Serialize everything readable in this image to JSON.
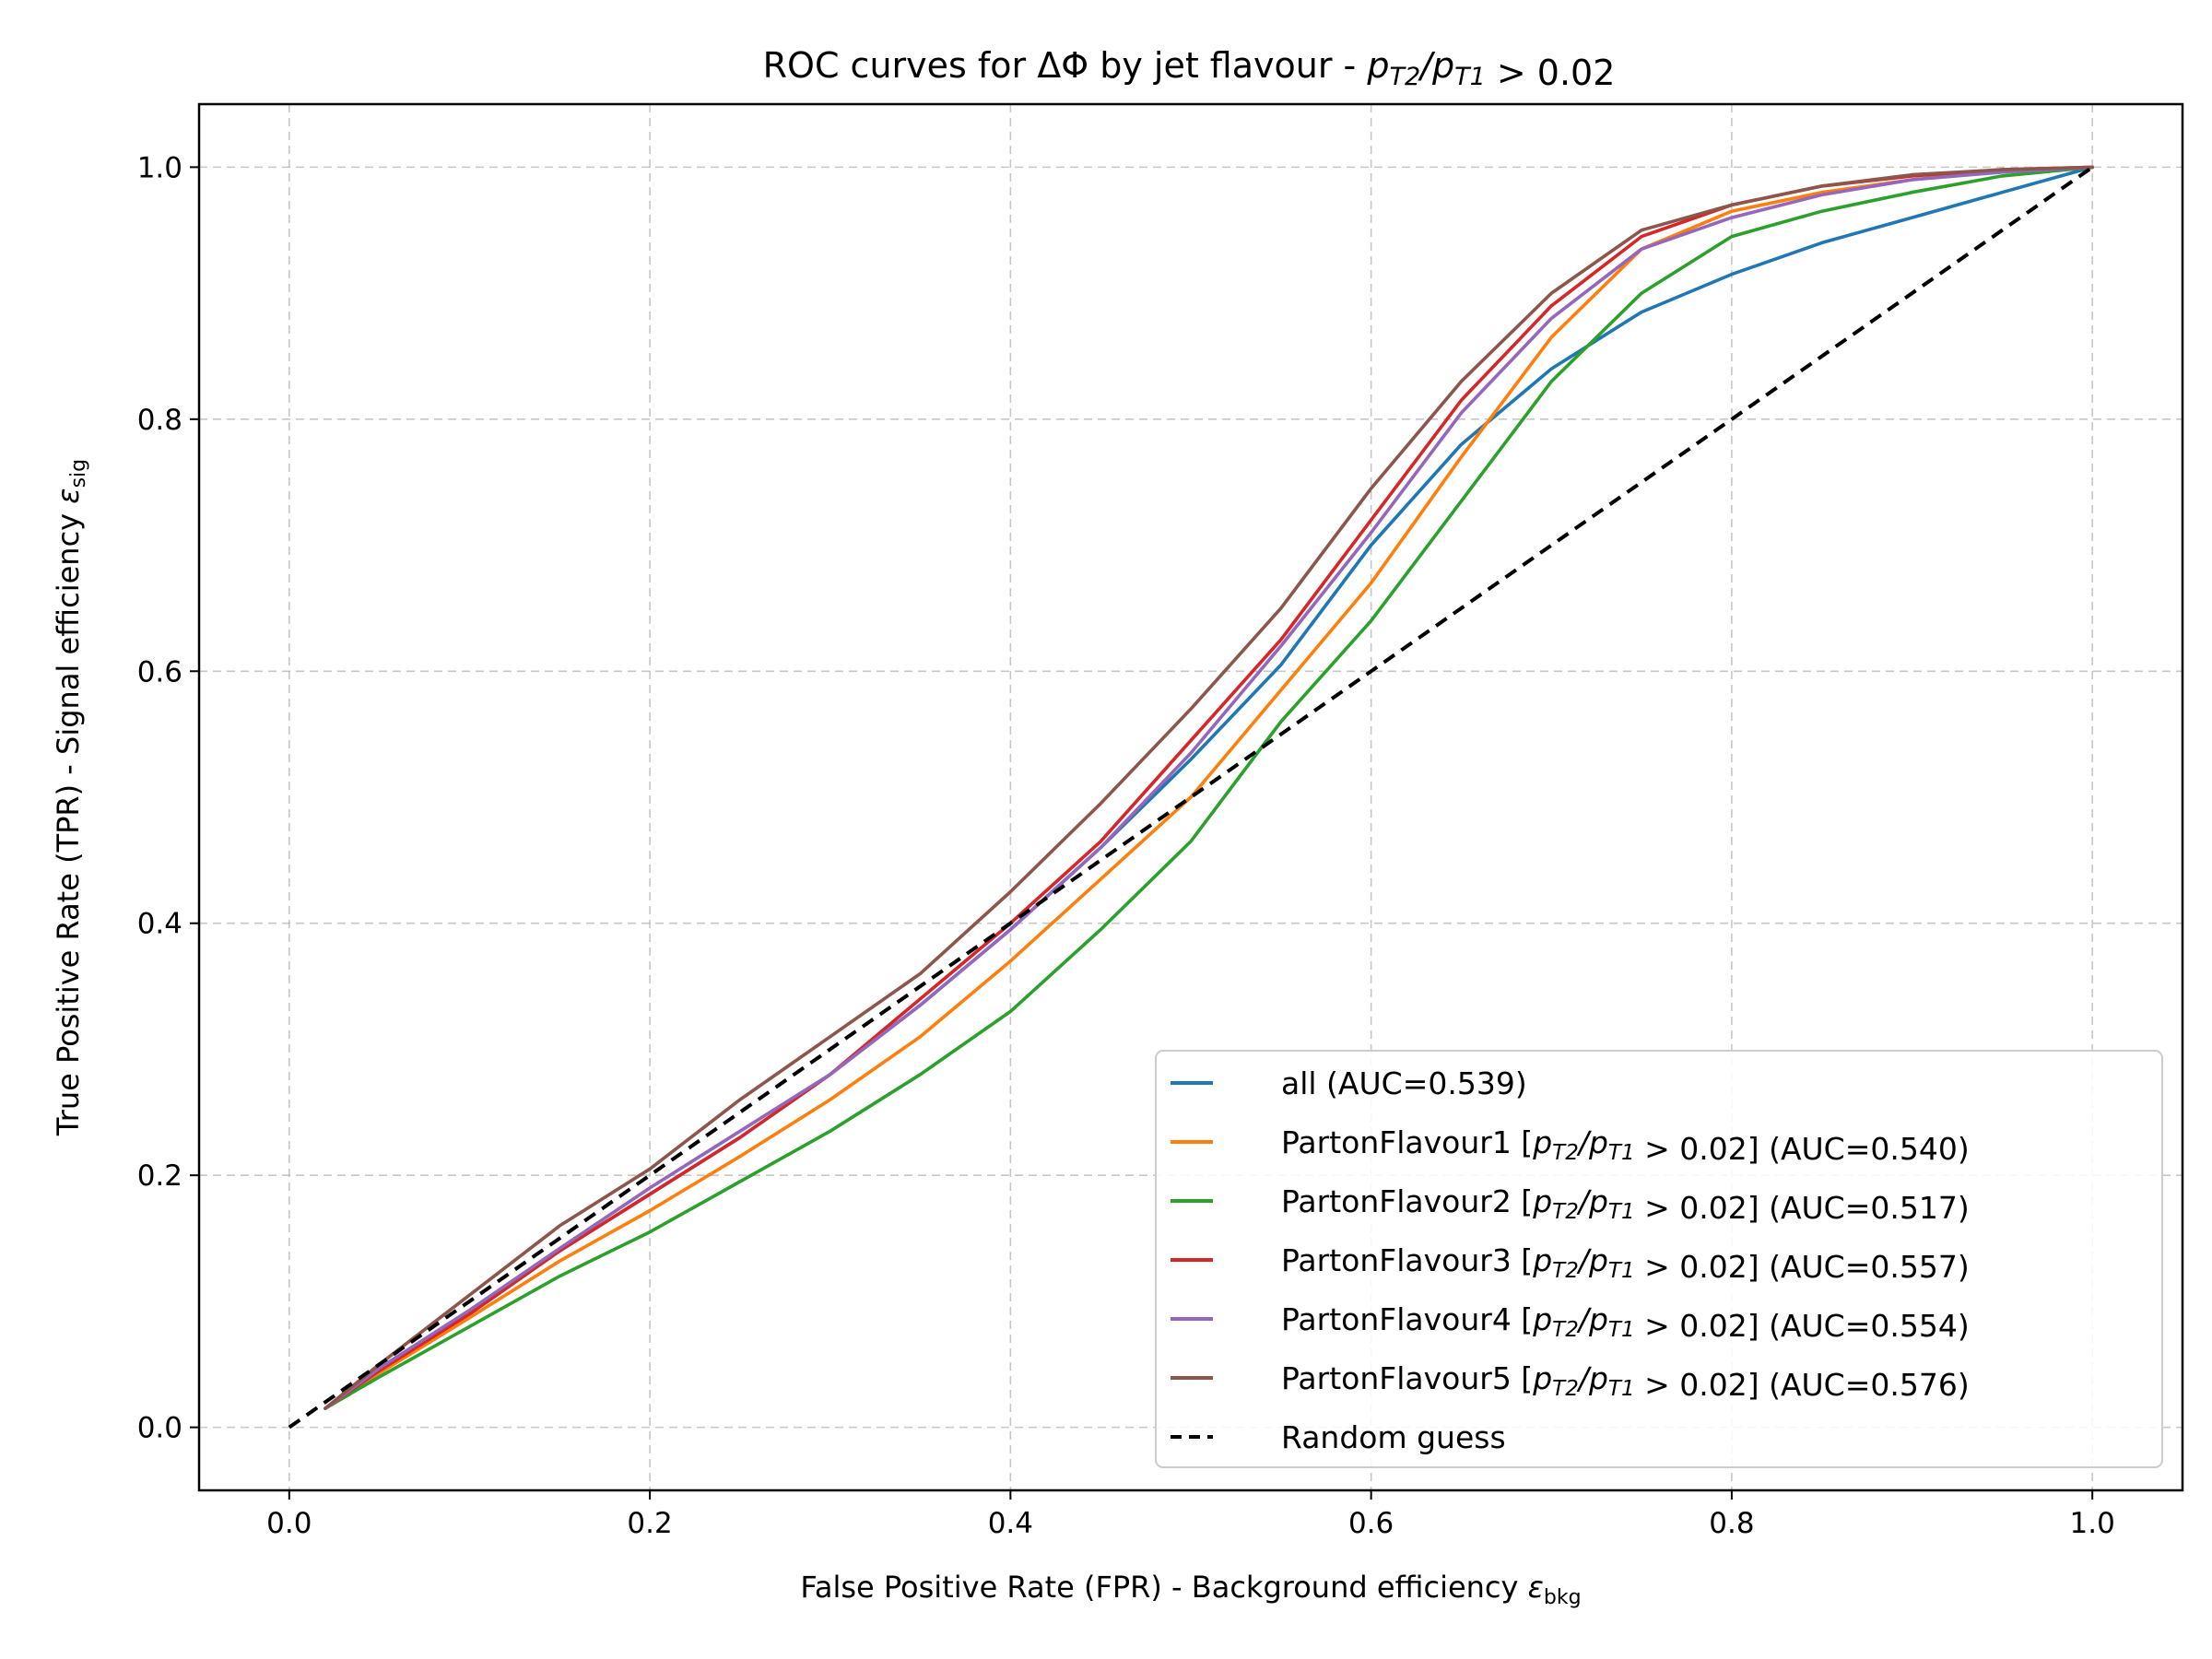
{
  "chart_data": {
    "type": "line",
    "title": "ROC curves for ΔΦ by jet flavour - pₜ₂/pₜ₁ > 0.02",
    "title_parts": {
      "prefix": "ROC curves for ΔΦ by jet flavour - ",
      "suffix": " > 0.02"
    },
    "xlabel": "False Positive Rate (FPR) - Background efficiency εbkg",
    "xlabel_parts": {
      "main": "False Positive Rate (FPR) - Background efficiency ",
      "symbol": "ε",
      "sub": "bkg"
    },
    "ylabel": "True Positive Rate (TPR) - Signal efficiency εsig",
    "ylabel_parts": {
      "main": "True Positive Rate (TPR) - Signal efficiency ",
      "symbol": "ε",
      "sub": "sig"
    },
    "xlim": [
      -0.05,
      1.05
    ],
    "ylim": [
      -0.05,
      1.05
    ],
    "xticks": [
      0.0,
      0.2,
      0.4,
      0.6,
      0.8,
      1.0
    ],
    "yticks": [
      0.0,
      0.2,
      0.4,
      0.6,
      0.8,
      1.0
    ],
    "xtick_labels": [
      "0.0",
      "0.2",
      "0.4",
      "0.6",
      "0.8",
      "1.0"
    ],
    "ytick_labels": [
      "0.0",
      "0.2",
      "0.4",
      "0.6",
      "0.8",
      "1.0"
    ],
    "grid": true,
    "legend_position": "lower-right",
    "series": [
      {
        "name": "all (AUC=0.539)",
        "label_prefix": "all (AUC=0.539)",
        "label_suffix": "",
        "has_cut": false,
        "color": "#1f77b4",
        "x": [
          0.02,
          0.05,
          0.1,
          0.15,
          0.2,
          0.25,
          0.3,
          0.35,
          0.4,
          0.45,
          0.5,
          0.55,
          0.6,
          0.65,
          0.7,
          0.75,
          0.8,
          0.85,
          0.9,
          0.95,
          1.0
        ],
        "y": [
          0.015,
          0.045,
          0.09,
          0.14,
          0.185,
          0.23,
          0.28,
          0.335,
          0.395,
          0.46,
          0.53,
          0.605,
          0.7,
          0.78,
          0.84,
          0.885,
          0.915,
          0.94,
          0.96,
          0.98,
          1.0
        ]
      },
      {
        "name": "PartonFlavour1 [pT2/pT1 > 0.02] (AUC=0.540)",
        "label_prefix": "PartonFlavour1 [",
        "label_suffix": " > 0.02] (AUC=0.540)",
        "has_cut": true,
        "color": "#ff7f0e",
        "x": [
          0.02,
          0.05,
          0.1,
          0.15,
          0.2,
          0.25,
          0.3,
          0.35,
          0.4,
          0.45,
          0.5,
          0.55,
          0.6,
          0.65,
          0.7,
          0.75,
          0.8,
          0.85,
          0.9,
          0.95,
          1.0
        ],
        "y": [
          0.015,
          0.043,
          0.087,
          0.132,
          0.172,
          0.215,
          0.26,
          0.31,
          0.37,
          0.435,
          0.5,
          0.585,
          0.67,
          0.77,
          0.865,
          0.935,
          0.965,
          0.98,
          0.99,
          0.997,
          1.0
        ]
      },
      {
        "name": "PartonFlavour2 [pT2/pT1 > 0.02] (AUC=0.517)",
        "label_prefix": "PartonFlavour2 [",
        "label_suffix": " > 0.02] (AUC=0.517)",
        "has_cut": true,
        "color": "#2ca02c",
        "x": [
          0.02,
          0.05,
          0.1,
          0.15,
          0.2,
          0.25,
          0.3,
          0.35,
          0.4,
          0.45,
          0.5,
          0.55,
          0.6,
          0.65,
          0.7,
          0.75,
          0.8,
          0.85,
          0.9,
          0.95,
          1.0
        ],
        "y": [
          0.015,
          0.04,
          0.08,
          0.12,
          0.155,
          0.195,
          0.235,
          0.28,
          0.33,
          0.395,
          0.465,
          0.56,
          0.64,
          0.735,
          0.83,
          0.9,
          0.945,
          0.965,
          0.98,
          0.993,
          1.0
        ]
      },
      {
        "name": "PartonFlavour3 [pT2/pT1 > 0.02] (AUC=0.557)",
        "label_prefix": "PartonFlavour3 [",
        "label_suffix": " > 0.02] (AUC=0.557)",
        "has_cut": true,
        "color": "#d62728",
        "x": [
          0.02,
          0.05,
          0.1,
          0.15,
          0.2,
          0.25,
          0.3,
          0.35,
          0.4,
          0.45,
          0.5,
          0.55,
          0.6,
          0.65,
          0.7,
          0.75,
          0.8,
          0.85,
          0.9,
          0.95,
          1.0
        ],
        "y": [
          0.015,
          0.045,
          0.09,
          0.14,
          0.185,
          0.23,
          0.28,
          0.34,
          0.4,
          0.465,
          0.545,
          0.625,
          0.72,
          0.815,
          0.89,
          0.945,
          0.97,
          0.985,
          0.993,
          0.998,
          1.0
        ]
      },
      {
        "name": "PartonFlavour4 [pT2/pT1 > 0.02] (AUC=0.554)",
        "label_prefix": "PartonFlavour4 [",
        "label_suffix": " > 0.02] (AUC=0.554)",
        "has_cut": true,
        "color": "#9467bd",
        "x": [
          0.02,
          0.05,
          0.1,
          0.15,
          0.2,
          0.25,
          0.3,
          0.35,
          0.4,
          0.45,
          0.5,
          0.55,
          0.6,
          0.65,
          0.7,
          0.75,
          0.8,
          0.85,
          0.9,
          0.95,
          1.0
        ],
        "y": [
          0.015,
          0.047,
          0.093,
          0.142,
          0.19,
          0.235,
          0.28,
          0.335,
          0.395,
          0.46,
          0.535,
          0.62,
          0.71,
          0.805,
          0.88,
          0.935,
          0.96,
          0.978,
          0.99,
          0.996,
          1.0
        ]
      },
      {
        "name": "PartonFlavour5 [pT2/pT1 > 0.02] (AUC=0.576)",
        "label_prefix": "PartonFlavour5 [",
        "label_suffix": " > 0.02] (AUC=0.576)",
        "has_cut": true,
        "color": "#8c564b",
        "x": [
          0.02,
          0.05,
          0.1,
          0.15,
          0.2,
          0.25,
          0.3,
          0.35,
          0.4,
          0.45,
          0.5,
          0.55,
          0.6,
          0.65,
          0.7,
          0.75,
          0.8,
          0.85,
          0.9,
          0.95,
          1.0
        ],
        "y": [
          0.015,
          0.05,
          0.105,
          0.16,
          0.205,
          0.26,
          0.31,
          0.36,
          0.425,
          0.495,
          0.57,
          0.65,
          0.745,
          0.83,
          0.9,
          0.95,
          0.97,
          0.985,
          0.994,
          0.998,
          1.0
        ]
      },
      {
        "name": "Random guess",
        "label_prefix": "Random guess",
        "label_suffix": "",
        "has_cut": false,
        "color": "#000000",
        "dashed": true,
        "x": [
          0.0,
          1.0
        ],
        "y": [
          0.0,
          1.0
        ]
      }
    ]
  }
}
